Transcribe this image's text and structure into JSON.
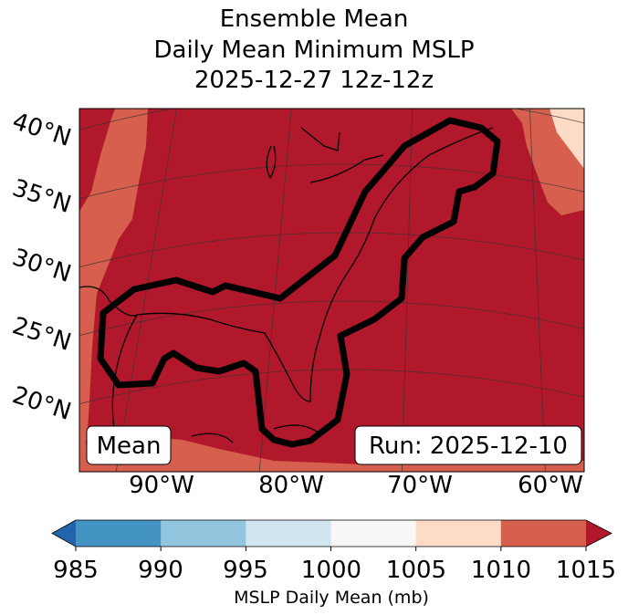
{
  "title": {
    "line1": "Ensemble Mean",
    "line2": "Daily Mean Minimum MSLP",
    "line3": "2025-12-27 12z-12z"
  },
  "map": {
    "lat_labels": [
      "40°N",
      "35°N",
      "30°N",
      "25°N",
      "20°N"
    ],
    "lon_labels": [
      "90°W",
      "80°W",
      "70°W",
      "60°W"
    ],
    "mean_label": "Mean",
    "run_label": "Run: 2025-12-10"
  },
  "colorbar": {
    "ticks": [
      "985",
      "990",
      "995",
      "1000",
      "1005",
      "1010",
      "1015"
    ],
    "label": "MSLP Daily Mean (mb)",
    "colors": [
      "#2166ac",
      "#4393c3",
      "#92c5de",
      "#d1e5f0",
      "#f7f7f7",
      "#fddbc7",
      "#d6604d",
      "#b2182b"
    ]
  },
  "colors": {
    "dominant": "#b2182b",
    "band_1005_1010": "#fddbc7",
    "band_1010_1015": "#d6604d",
    "contour": "#000000"
  }
}
